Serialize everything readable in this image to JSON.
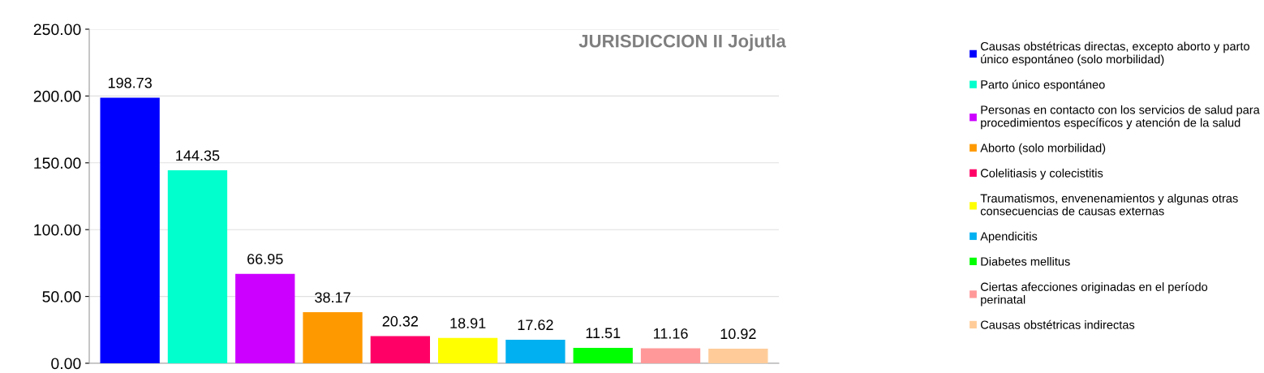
{
  "chart_data": {
    "type": "bar",
    "title": "JURISDICCION II Jojutla",
    "categories": [
      null
    ],
    "series": [
      {
        "name": "Causas obstétricas directas, excepto aborto y parto único espontáneo (solo morbilidad)",
        "color": "#0000ff",
        "values": [
          198.73
        ]
      },
      {
        "name": "Parto único espontáneo",
        "color": "#00ffcc",
        "values": [
          144.35
        ]
      },
      {
        "name": "Personas en contacto con los servicios de salud para procedimientos específicos y atención de la salud",
        "color": "#cc00ff",
        "values": [
          66.95
        ]
      },
      {
        "name": "Aborto (solo morbilidad)",
        "color": "#ff9900",
        "values": [
          38.17
        ]
      },
      {
        "name": "Colelitiasis y colecistitis",
        "color": "#ff0066",
        "values": [
          20.32
        ]
      },
      {
        "name": "Traumatismos, envenenamientos y algunas otras consecuencias de causas externas",
        "color": "#ffff00",
        "values": [
          18.91
        ]
      },
      {
        "name": "Apendicitis",
        "color": "#00b0f0",
        "values": [
          17.62
        ]
      },
      {
        "name": "Diabetes mellitus",
        "color": "#00ff00",
        "values": [
          11.51
        ]
      },
      {
        "name": "Ciertas afecciones originadas en el período perinatal",
        "color": "#ff9999",
        "values": [
          11.16
        ]
      },
      {
        "name": "Causas obstétricas indirectas",
        "color": "#ffcc99",
        "values": [
          10.92
        ]
      }
    ],
    "data_labels": true,
    "ylim": [
      0,
      250
    ],
    "yticks": [
      {
        "value": 0,
        "label": "0.00"
      },
      {
        "value": 50,
        "label": "50.00"
      },
      {
        "value": 100,
        "label": "100.00"
      },
      {
        "value": 150,
        "label": "150.00"
      },
      {
        "value": 200,
        "label": "200.00"
      },
      {
        "value": 250,
        "label": "250.00"
      }
    ],
    "grid": "y",
    "legend": "right",
    "tick_labels": "y"
  }
}
